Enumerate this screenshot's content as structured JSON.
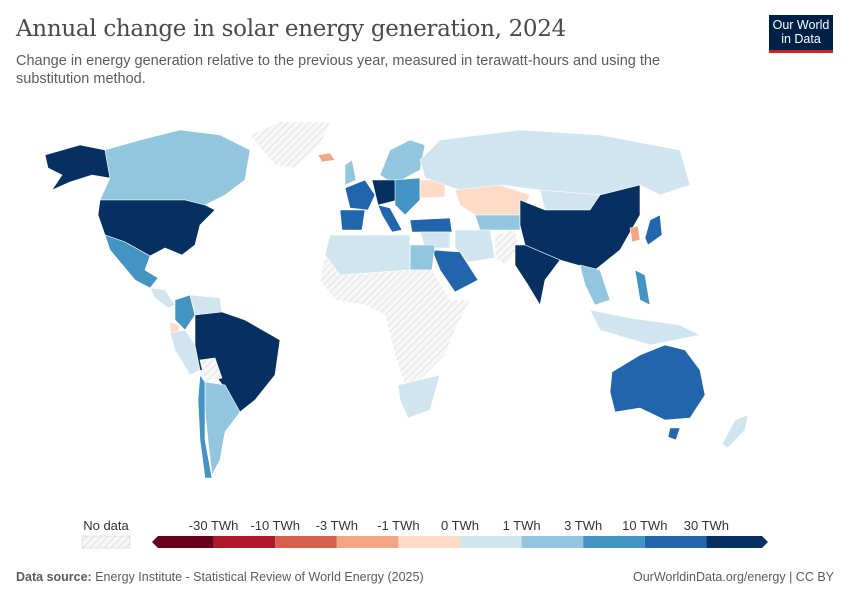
{
  "header": {
    "title": "Annual change in solar energy generation, 2024",
    "subtitle": "Change in energy generation relative to the previous year, measured in terawatt-hours and using the substitution method.",
    "logo": "Our World in Data"
  },
  "legend": {
    "no_data_label": "No data",
    "bins": [
      {
        "color": "#67001f"
      },
      {
        "color": "#b2182b"
      },
      {
        "color": "#d6604d"
      },
      {
        "color": "#f4a582"
      },
      {
        "color": "#fddbc7"
      },
      {
        "color": "#d1e5f0"
      },
      {
        "color": "#92c5de"
      },
      {
        "color": "#4393c3"
      },
      {
        "color": "#2166ac"
      },
      {
        "color": "#053061"
      }
    ],
    "ticks": [
      "-30 TWh",
      "-10 TWh",
      "-3 TWh",
      "-1 TWh",
      "0 TWh",
      "1 TWh",
      "3 TWh",
      "10 TWh",
      "30 TWh"
    ]
  },
  "map_fills": {
    "usa": 9,
    "alaska": 9,
    "canada": 6,
    "greenland": -1,
    "mexico": 7,
    "central_america": 5,
    "colombia": 7,
    "venezuela": 5,
    "peru": 5,
    "ecuador": 4,
    "brazil": 9,
    "bolivia": -1,
    "argentina": 6,
    "chile": 7,
    "russia": 5,
    "kazakhstan": 4,
    "china": 9,
    "mongolia": 5,
    "india": 9,
    "pakistan": -1,
    "iran": 5,
    "saudi": 8,
    "turkey": 8,
    "korea": 3,
    "japan": 8,
    "se_asia": 6,
    "philippines": 7,
    "indonesia": 5,
    "australia": 8,
    "new_zealand": 5,
    "tasmania": 8,
    "scandinavia": 6,
    "iceland": 3,
    "western_europe": 8,
    "germany": 9,
    "spain": 8,
    "italy": 8,
    "eastern_europe": 7,
    "ukraine": 4,
    "uk": 6,
    "north_africa": 5,
    "egypt": 6,
    "africa": -1,
    "south_africa": 5,
    "central_asia": 6,
    "middle_east": 5
  },
  "footer": {
    "source_label": "Data source:",
    "source": "Energy Institute - Statistical Review of World Energy (2025)",
    "link": "OurWorldinData.org/energy | CC BY"
  }
}
